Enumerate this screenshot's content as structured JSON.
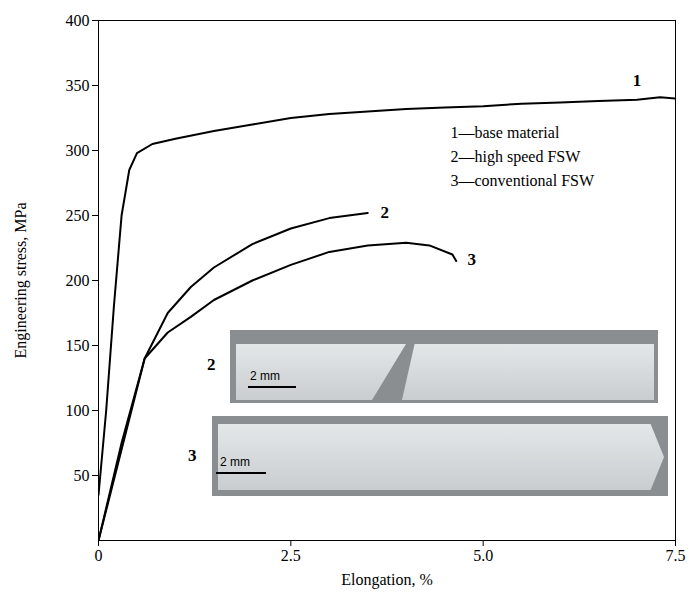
{
  "chart_data": {
    "type": "line",
    "x_label": "Elongation, %",
    "y_label": "Engineering stress, MPa",
    "xlim": [
      0,
      7.5
    ],
    "xticks": [
      0,
      2.5,
      {
        "value": 5,
        "label": "5.0"
      },
      7.5
    ],
    "ylim": [
      0,
      400
    ],
    "yticks": [
      50,
      100,
      150,
      200,
      250,
      300,
      350,
      400
    ],
    "grid": false,
    "legend": "upper right",
    "series": [
      {
        "name": "1—base material",
        "color": "#000000",
        "x": [
          0,
          0.1,
          0.2,
          0.3,
          0.4,
          0.5,
          0.7,
          1.0,
          1.5,
          2.0,
          2.5,
          3.0,
          3.5,
          4.0,
          4.5,
          5.0,
          5.5,
          6.0,
          6.5,
          7.0,
          7.3,
          7.5
        ],
        "values": [
          35,
          100,
          180,
          250,
          285,
          298,
          305,
          309,
          315,
          320,
          325,
          328,
          330,
          332,
          333,
          334,
          336,
          337,
          338,
          339,
          341,
          340
        ]
      },
      {
        "name": "2—high speed FSW",
        "color": "#000000",
        "x": [
          0,
          0.3,
          0.6,
          0.9,
          1.2,
          1.5,
          2.0,
          2.5,
          3.0,
          3.5
        ],
        "values": [
          0,
          75,
          140,
          175,
          195,
          210,
          228,
          240,
          248,
          252
        ]
      },
      {
        "name": "3—conventional FSW",
        "color": "#000000",
        "x": [
          0,
          0.3,
          0.6,
          0.9,
          1.2,
          1.5,
          2.0,
          2.5,
          3.0,
          3.5,
          4.0,
          4.3,
          4.6,
          4.65
        ],
        "values": [
          0,
          70,
          140,
          160,
          172,
          185,
          200,
          212,
          222,
          227,
          229,
          227,
          220,
          215
        ]
      }
    ],
    "annotations": [
      {
        "text": "1",
        "x": 7.0,
        "y": 354
      },
      {
        "text": "2",
        "x": 3.72,
        "y": 252
      },
      {
        "text": "3",
        "x": 4.85,
        "y": 216
      }
    ],
    "insets": [
      {
        "label": "2",
        "scale_bar": "2 mm"
      },
      {
        "label": "3",
        "scale_bar": "2 mm"
      }
    ]
  }
}
